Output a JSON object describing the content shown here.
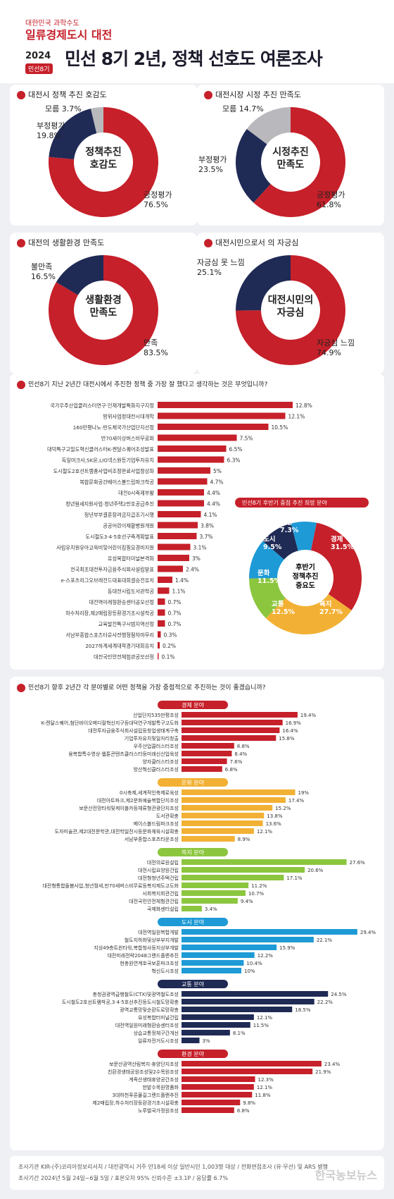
{
  "header": {
    "brand_small": "대한민국 과학수도",
    "brand": "일류경제도시 대전",
    "year": "2024",
    "tag": "민선8기",
    "title": "민선 8기 2년, 정책 선호도 여론조사"
  },
  "donuts": [
    {
      "title": "대전시 정책 추진 호감도",
      "center": "정책추진\n호감도",
      "labels": [
        {
          "t": "모름 3.7%"
        },
        {
          "t": "부정평가\n19.8%"
        },
        {
          "t": "긍정평가\n76.5%"
        }
      ]
    },
    {
      "title": "대전시장 시정 추진 만족도",
      "center": "시정추진\n만족도",
      "labels": [
        {
          "t": "모름 14.7%"
        },
        {
          "t": "부정평가\n23.5%"
        },
        {
          "t": "긍정평가\n61.8%"
        }
      ]
    },
    {
      "title": "대전의 생활환경 만족도",
      "center": "생활환경\n만족도",
      "labels": [
        {
          "t": "불만족\n16.5%"
        },
        {
          "t": "만족\n83.5%"
        }
      ]
    },
    {
      "title": "대전시민으로서 의 자긍심",
      "center": "대전시민의\n자긍심",
      "labels": [
        {
          "t": "자긍심 못 느낌\n25.1%"
        },
        {
          "t": "자긍심 느낌\n74.9%"
        }
      ]
    }
  ],
  "q1": {
    "title": "민선8기 지난 2년간 대전시에서 추진한 정책 중 가장 잘 했다고 생각하는 것은 무엇입니까?"
  },
  "q2": {
    "title": "민선8기 향후 2년간 각 분야별로 어떤 정책을 가장 중점적으로 추진하는 것이 좋겠습니까?"
  },
  "priority": {
    "title": "민선8기 후반기 중점 추진 희망 분야",
    "center": "후반기\n정책추진\n중요도",
    "labels": [
      "환경\n7.3%",
      "도시\n9.5%",
      "경제\n31.5%",
      "문화\n11.5%",
      "교통\n12.5%",
      "복지\n27.7%"
    ]
  },
  "footer": {
    "line1": "조사기관 KIR-(주)코리아정보리서치  /  대전광역시 거주 만18세 이상 일반시민 1,003명 대상  /  전화면접조사 (유·무선) 및 ARS 병행",
    "line2": "조사기간 2024년 5월 24일~6월 5일  /  표본오차 95% 신뢰수준 ±3.1P  /  응답률 6.7%",
    "watermark": "한국농보뉴스"
  },
  "colors": {
    "red": "#c6202a",
    "navy": "#1f2a55",
    "grey": "#b9b9bd",
    "yellow": "#f2b134",
    "green": "#8cc63f",
    "blue": "#1e9ad6",
    "dark": "#1f2a55"
  },
  "chart_data": [
    {
      "type": "pie",
      "title": "대전시 정책 추진 호감도",
      "categories": [
        "긍정평가",
        "부정평가",
        "모름"
      ],
      "values": [
        76.5,
        19.8,
        3.7
      ]
    },
    {
      "type": "pie",
      "title": "대전시장 시정 추진 만족도",
      "categories": [
        "긍정평가",
        "부정평가",
        "모름"
      ],
      "values": [
        61.8,
        23.5,
        14.7
      ]
    },
    {
      "type": "pie",
      "title": "대전의 생활환경 만족도",
      "categories": [
        "만족",
        "불만족"
      ],
      "values": [
        83.5,
        16.5
      ]
    },
    {
      "type": "pie",
      "title": "대전시민으로서 의 자긍심",
      "categories": [
        "자긍심 느낌",
        "자긍심 못 느낌"
      ],
      "values": [
        74.9,
        25.1
      ]
    },
    {
      "type": "bar",
      "title": "민선8기 지난 2년간 대전시에서 추진한 정책 중 가장 잘 했다고 생각하는 것은 무엇입니까?",
      "categories": [
        "국가우주산업클러스터연구·인재개발특화지구지정",
        "방위사업청대전시대개막",
        "160만평나노·반도체국가산업단지선정",
        "만70세이상버스비무료화",
        "대덕특구고밀도혁신클러스터K-켄달스퀘어조성발표",
        "독일머크사,SK온,LIG넥스원등기업투자유치",
        "도시철도2호선트램총사업비조정완료사업정상화",
        "복합문화공간베이스볼드림파크착공",
        "대전0시축제부활",
        "청년월세지원사업·청년주택2만호공급추진",
        "청년부부결혼장려금지급조기시행",
        "공공어린이재활병원개원",
        "도시철도3·4·5호선구축계획발표",
        "사립유치원유아교육비및어린이집필요경비지원",
        "유성복합터미널본격화",
        "전국최초대전투자금융주식회사설립발표",
        "e-스포츠리그오브레전드대표대회결승전유치",
        "동대전시립도서관착공",
        "대전역이래형환승센터공모선정",
        "하수처리장,제2매립장등환경기초시설착공",
        "교육발전특구시범지역선정",
        "서남부종합스포츠타운사전행정절차마무리",
        "2027하계세계대학경기대회유치",
        "대전국민안전체험관공모선정"
      ],
      "values": [
        12.8,
        12.1,
        10.5,
        7.5,
        6.5,
        6.3,
        5.0,
        4.7,
        4.4,
        4.4,
        4.1,
        3.8,
        3.7,
        3.1,
        3.0,
        2.4,
        1.4,
        1.1,
        0.7,
        0.7,
        0.7,
        0.3,
        0.2,
        0.1
      ]
    },
    {
      "type": "pie",
      "title": "민선8기 후반기 중점 추진 희망 분야",
      "categories": [
        "경제",
        "복지",
        "교통",
        "문화",
        "도시",
        "환경"
      ],
      "values": [
        31.5,
        27.7,
        12.5,
        11.5,
        9.5,
        7.3
      ]
    },
    {
      "type": "bar",
      "title": "민선8기 향후 2년간 각 분야별로 어떤 정책을 가장 중점적으로 추진하는 것이 좋겠습니까?",
      "groups": [
        {
          "name": "경제 분야",
          "color": "#c6202a",
          "categories": [
            "산업단지535만평조성",
            "K-켄달스퀘어,첨단바이오메디컬혁신지구등대덕연구개발특구고도화",
            "대전투자금융주식회사설립등창업생태계구축",
            "기업투자유치및일자리창출",
            "우주산업클러스터조성",
            "융복합특수영상·웹툰콘텐츠클러스터등미래신산업육성",
            "양자클러스터조성",
            "방산혁신클러스터조성"
          ],
          "values": [
            19.4,
            16.9,
            16.4,
            15.8,
            8.8,
            8.4,
            7.6,
            6.8
          ]
        },
        {
          "name": "문화 분야",
          "color": "#f2b134",
          "categories": [
            "0시축제,세계적인축제로육성",
            "대전아트파크,제2문화예술복합단지조성",
            "보문산전망타워및케이블카등체류형관광단지조성",
            "도서관확충",
            "베이스볼드림파크조성",
            "도자미술관,제2대전문학관,대전학일전시등문화체육시설확충",
            "서남부종합스포츠타운조성"
          ],
          "values": [
            19.0,
            17.4,
            15.2,
            13.8,
            13.6,
            12.1,
            8.9
          ]
        },
        {
          "name": "복지 분야",
          "color": "#8cc63f",
          "categories": [
            "대전의료원설립",
            "대전시립요양원건립",
            "대전형청년주택건립",
            "대전형통합돌봄사업,청년월세,만70세버스비무료등복지제도고도화",
            "사회복지회관건립",
            "대전국민안전체험관건립",
            "국제화센터설립"
          ],
          "values": [
            27.6,
            20.6,
            17.1,
            11.2,
            10.7,
            9.4,
            3.4
          ]
        },
        {
          "name": "도시 분야",
          "color": "#1e9ad6",
          "categories": [
            "대전역일원복합개발",
            "철도지하화및상부부지개발",
            "지상49층트윈타워,복합청사등지상부개발",
            "대전미래전략2048그랜드플랜추진",
            "현충원연계호국보훈파크조성",
            "혁신도시조성"
          ],
          "values": [
            29.4,
            22.1,
            15.9,
            12.2,
            10.4,
            10.0
          ]
        },
        {
          "name": "교통 분야",
          "color": "#1f2a55",
          "categories": [
            "충청권광역급행철도(CTX)및광역철도조성",
            "도시철도2호선트램착공,3·4·5호선추진등도시철도망확충",
            "광역교통망및순환도로망확충",
            "유성복합터미널건립",
            "대전역일원미래형환승센터조성",
            "상습교통정체구간개선",
            "일류자전거도시조성"
          ],
          "values": [
            24.5,
            22.2,
            18.5,
            12.1,
            11.5,
            8.1,
            3.0
          ]
        },
        {
          "name": "환경 분야",
          "color": "#c6202a",
          "categories": [
            "보문산권역산림복지·휴양단지조성",
            "친환경생태공원조성및2수목원조성",
            "계족산생태휴양공간조성",
            "한밭수목원명품화",
            "3대하천푸른물길그랜드플랜추진",
            "제2매립장,하수처리장등환경기초시설확충",
            "노루벌국가정원조성"
          ],
          "values": [
            23.4,
            21.9,
            12.3,
            12.1,
            11.8,
            9.8,
            8.8
          ]
        }
      ]
    }
  ]
}
